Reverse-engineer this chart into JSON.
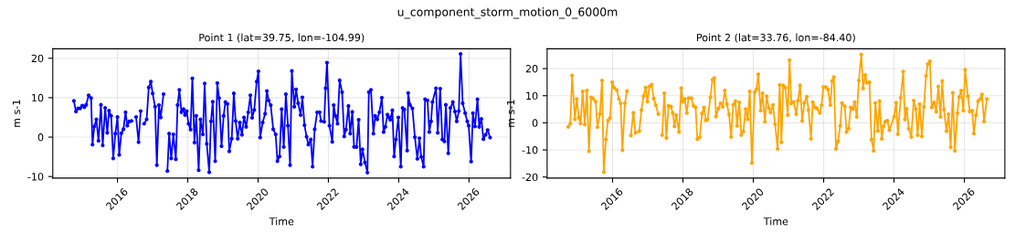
{
  "chart_data": [
    {
      "type": "line",
      "title": "Point 1 (lat=39.75, lon=-104.99)",
      "annotations": [
        "u_component_storm_motion_0_6000m"
      ],
      "xlabel": "Time",
      "ylabel": "m s-1",
      "xlim": [
        2014.16,
        2027.18
      ],
      "xticks": [
        2016,
        2018,
        2020,
        2022,
        2024,
        2026
      ],
      "ylim": [
        -10.4,
        22.4
      ],
      "yticks": [
        -10,
        0,
        10,
        20
      ],
      "grid": true,
      "marker": "circle",
      "line_style": "solid",
      "series": [
        {
          "color": "#0000ff",
          "x": [
            2014.76,
            2014.82,
            2014.88,
            2014.94,
            2015.0,
            2015.06,
            2015.11,
            2015.18,
            2015.25,
            2015.29,
            2015.34,
            2015.4,
            2015.46,
            2015.53,
            2015.58,
            2015.65,
            2015.71,
            2015.76,
            2015.82,
            2015.88,
            2015.94,
            2016.0,
            2016.05,
            2016.11,
            2016.17,
            2016.23,
            2016.28,
            2016.34,
            2016.4,
            2016.47,
            2016.53,
            2016.6,
            2016.66,
            2016.71,
            2016.76,
            2016.83,
            2016.89,
            2016.95,
            2017.0,
            2017.07,
            2017.12,
            2017.18,
            2017.23,
            2017.31,
            2017.37,
            2017.42,
            2017.47,
            2017.53,
            2017.59,
            2017.66,
            2017.71,
            2017.76,
            2017.82,
            2017.88,
            2017.92,
            2017.97,
            2018.02,
            2018.08,
            2018.13,
            2018.19,
            2018.24,
            2018.31,
            2018.36,
            2018.43,
            2018.48,
            2018.54,
            2018.61,
            2018.66,
            2018.71,
            2018.78,
            2018.84,
            2018.89,
            2018.96,
            2019.02,
            2019.07,
            2019.13,
            2019.18,
            2019.25,
            2019.31,
            2019.36,
            2019.42,
            2019.48,
            2019.54,
            2019.6,
            2019.66,
            2019.72,
            2019.78,
            2019.83,
            2019.89,
            2019.96,
            2020.01,
            2020.06,
            2020.13,
            2020.2,
            2020.25,
            2020.3,
            2020.36,
            2020.43,
            2020.5,
            2020.55,
            2020.61,
            2020.67,
            2020.73,
            2020.79,
            2020.85,
            2020.91,
            2020.96,
            2021.03,
            2021.08,
            2021.14,
            2021.21,
            2021.26,
            2021.32,
            2021.38,
            2021.43,
            2021.5,
            2021.55,
            2021.61,
            2021.68,
            2021.75,
            2021.79,
            2021.88,
            2021.92,
            2021.96,
            2022.03,
            2022.11,
            2022.15,
            2022.2,
            2022.26,
            2022.32,
            2022.39,
            2022.45,
            2022.5,
            2022.57,
            2022.62,
            2022.68,
            2022.73,
            2022.8,
            2022.86,
            2022.92,
            2022.97,
            2023.04,
            2023.11,
            2023.15,
            2023.21,
            2023.28,
            2023.33,
            2023.39,
            2023.45,
            2023.52,
            2023.57,
            2023.62,
            2023.68,
            2023.73,
            2023.76,
            2023.82,
            2023.87,
            2023.92,
            2023.99,
            2024.06,
            2024.11,
            2024.16,
            2024.24,
            2024.27,
            2024.32,
            2024.39,
            2024.46,
            2024.53,
            2024.59,
            2024.64,
            2024.71,
            2024.75,
            2024.82,
            2024.87,
            2024.92,
            2024.96,
            2025.06,
            2025.11,
            2025.18,
            2025.24,
            2025.3,
            2025.34,
            2025.41,
            2025.47,
            2025.54,
            2025.6,
            2025.65,
            2025.71,
            2025.76,
            2025.82,
            2025.89,
            2025.95,
            2025.99,
            2026.06,
            2026.11,
            2026.17,
            2026.24,
            2026.29,
            2026.35,
            2026.41,
            2026.47,
            2026.53,
            2026.6
          ],
          "values": [
            9.2,
            6.5,
            7.3,
            7.3,
            8.0,
            7.6,
            8.2,
            10.6,
            9.9,
            -1.9,
            2.7,
            4.5,
            -0.9,
            8.2,
            -2.1,
            7.4,
            1.1,
            6.7,
            5.4,
            -5.4,
            0.9,
            5.1,
            -4.5,
            1.0,
            2.0,
            6.3,
            2.9,
            4.0,
            4.1,
            null,
            5.1,
            -1.3,
            6.6,
            null,
            3.4,
            4.5,
            12.6,
            14.1,
            11.1,
            7.7,
            -7.1,
            8.1,
            5.0,
            10.9,
            null,
            -8.6,
            0.9,
            -5.4,
            0.7,
            -5.6,
            8.1,
            12.0,
            6.3,
            7.1,
            5.6,
            6.6,
            3.4,
            1.9,
            14.9,
            -1.4,
            5.4,
            -8.4,
            4.5,
            0.7,
            13.6,
            -1.7,
            -8.9,
            4.0,
            9.0,
            -6.1,
            13.7,
            9.9,
            -2.3,
            5.4,
            8.9,
            8.4,
            -3.6,
            -0.4,
            11.1,
            4.1,
            -0.4,
            3.7,
            0.6,
            5.0,
            2.6,
            6.3,
            10.6,
            4.9,
            6.9,
            14.1,
            16.7,
            -0.1,
            3.7,
            5.9,
            11.7,
            9.3,
            8.1,
            2.0,
            0.7,
            -6.1,
            -4.9,
            7.1,
            -2.5,
            10.9,
            2.9,
            -7.1,
            16.8,
            7.7,
            12.1,
            8.6,
            5.6,
            10.1,
            3.0,
            0.1,
            -1.9,
            -0.6,
            -7.5,
            2.0,
            6.3,
            6.3,
            4.1,
            3.9,
            12.4,
            18.9,
            2.9,
            -1.2,
            8.1,
            5.4,
            3.4,
            14.4,
            11.4,
            0.2,
            1.9,
            7.9,
            0.9,
            6.4,
            -2.5,
            -2.5,
            4.4,
            -6.9,
            -3.1,
            -6.4,
            -9.0,
            11.4,
            12.0,
            0.9,
            5.4,
            4.5,
            6.3,
            10.0,
            1.3,
            2.6,
            5.7,
            5.0,
            4.4,
            6.8,
            -4.9,
            -0.6,
            5.0,
            -7.5,
            7.4,
            7.0,
            -3.4,
            11.2,
            8.2,
            7.3,
            0.0,
            -5.5,
            -0.3,
            -5.0,
            -7.5,
            9.6,
            9.3,
            1.3,
            4.0,
            8.9,
            12.4,
            1.1,
            12.3,
            -0.6,
            -1.1,
            8.2,
            -4.1,
            7.4,
            8.9,
            6.5,
            4.0,
            6.6,
            21.1,
            8.6,
            6.1,
            4.0,
            2.9,
            -6.2,
            6.1,
            2.7,
            9.6,
            2.6,
            4.6,
            -0.5,
            0.6,
            1.8,
            -0.1
          ]
        }
      ]
    },
    {
      "type": "line",
      "title": "Point 2 (lat=33.76, lon=-84.40)",
      "xlabel": "Time",
      "ylabel": "m s-1",
      "xlim": [
        2014.14,
        2027.15
      ],
      "xticks": [
        2016,
        2018,
        2020,
        2022,
        2024,
        2026
      ],
      "ylim": [
        -20.4,
        27.3
      ],
      "yticks": [
        -20,
        -10,
        0,
        10,
        20
      ],
      "grid": true,
      "marker": "circle",
      "line_style": "solid",
      "series": [
        {
          "color": "#ffa500",
          "x": [
            2014.74,
            2014.8,
            2014.85,
            2014.93,
            2014.98,
            2015.04,
            2015.09,
            2015.15,
            2015.21,
            2015.27,
            2015.33,
            2015.39,
            2015.44,
            2015.52,
            2015.57,
            2015.64,
            2015.7,
            2015.75,
            2015.81,
            2015.87,
            2015.93,
            2015.99,
            2016.04,
            2016.12,
            2016.18,
            2016.23,
            2016.28,
            2016.35,
            2016.41,
            2016.47,
            2016.52,
            2016.59,
            2016.65,
            2016.76,
            2016.82,
            2016.88,
            2016.94,
            2016.99,
            2017.05,
            2017.11,
            2017.17,
            2017.23,
            2017.3,
            2017.35,
            2017.41,
            2017.47,
            2017.53,
            2017.59,
            2017.66,
            2017.71,
            2017.76,
            2017.81,
            2017.89,
            2017.95,
            2018.0,
            2018.05,
            2018.11,
            2018.16,
            2018.24,
            2018.3,
            2018.36,
            2018.41,
            2018.48,
            2018.54,
            2018.6,
            2018.65,
            2018.7,
            2018.78,
            2018.84,
            2018.89,
            2018.94,
            2019.01,
            2019.07,
            2019.13,
            2019.19,
            2019.25,
            2019.31,
            2019.37,
            2019.43,
            2019.49,
            2019.54,
            2019.6,
            2019.66,
            2019.72,
            2019.78,
            2019.84,
            2019.9,
            2019.96,
            2020.04,
            2020.09,
            2020.14,
            2020.21,
            2020.26,
            2020.33,
            2020.38,
            2020.44,
            2020.49,
            2020.56,
            2020.62,
            2020.69,
            2020.75,
            2020.8,
            2020.85,
            2020.91,
            2020.98,
            2021.03,
            2021.08,
            2021.15,
            2021.22,
            2021.27,
            2021.33,
            2021.39,
            2021.45,
            2021.52,
            2021.57,
            2021.64,
            2021.69,
            2021.76,
            2021.81,
            2021.89,
            2021.94,
            2021.99,
            2022.06,
            2022.12,
            2022.19,
            2022.24,
            2022.29,
            2022.35,
            2022.41,
            2022.47,
            2022.52,
            2022.6,
            2022.65,
            2022.71,
            2022.77,
            2022.83,
            2022.88,
            2022.94,
            2023.0,
            2023.07,
            2023.12,
            2023.18,
            2023.23,
            2023.3,
            2023.36,
            2023.42,
            2023.47,
            2023.54,
            2023.59,
            2023.65,
            2023.7,
            2023.75,
            2023.81,
            2023.87,
            2024.0,
            2024.06,
            2024.11,
            2024.19,
            2024.26,
            2024.31,
            2024.36,
            2024.42,
            2024.49,
            2024.56,
            2024.62,
            2024.67,
            2024.73,
            2024.79,
            2024.85,
            2024.91,
            2024.96,
            2025.02,
            2025.07,
            2025.14,
            2025.2,
            2025.26,
            2025.32,
            2025.37,
            2025.42,
            2025.49,
            2025.55,
            2025.61,
            2025.67,
            2025.73,
            2025.8,
            2025.85,
            2025.91,
            2025.97,
            2026.02,
            2026.1,
            2026.15,
            2026.22,
            2026.27,
            2026.33,
            2026.39,
            2026.45,
            2026.5,
            2026.56,
            2026.64
          ],
          "values": [
            -1.5,
            -0.3,
            17.5,
            1.3,
            8.8,
            2.0,
            -0.3,
            11.6,
            -0.6,
            11.9,
            -10.5,
            9.4,
            9.0,
            7.8,
            -1.6,
            3.2,
            15.6,
            -18.2,
            -6.1,
            0.9,
            1.8,
            15.0,
            13.0,
            12.1,
            8.8,
            7.2,
            -10.1,
            7.2,
            11.7,
            null,
            -4.7,
            3.7,
            -3.7,
            -3.1,
            4.7,
            9.8,
            13.0,
            7.8,
            13.4,
            14.1,
            9.0,
            6.5,
            3.2,
            null,
            -4.5,
            10.9,
            -5.6,
            6.3,
            6.0,
            3.6,
            -1.3,
            2.8,
            -3.4,
            12.8,
            7.8,
            8.8,
            3.6,
            9.1,
            9.1,
            6.3,
            5.7,
            -6.0,
            -5.3,
            3.4,
            5.7,
            0.9,
            1.2,
            9.4,
            15.9,
            16.5,
            2.3,
            5.3,
            7.2,
            5.9,
            11.9,
            6.9,
            3.1,
            -5.2,
            6.7,
            8.0,
            -1.1,
            7.5,
            -4.5,
            -3.2,
            5.1,
            1.3,
            11.6,
            -14.8,
            11.3,
            12.4,
            17.9,
            4.5,
            10.9,
            0.4,
            9.8,
            5.5,
            3.8,
            6.6,
            -0.5,
            -9.6,
            14.0,
            -7.2,
            13.8,
            13.0,
            2.8,
            23.1,
            7.2,
            7.7,
            3.2,
            8.2,
            13.8,
            0.7,
            7.4,
            9.6,
            4.7,
            -5.9,
            7.6,
            5.7,
            5.3,
            3.7,
            6.5,
            13.2,
            13.2,
            12.3,
            6.5,
            15.4,
            16.9,
            -9.6,
            -6.8,
            -1.1,
            7.3,
            6.1,
            -3.4,
            -2.1,
            5.7,
            5.1,
            7.6,
            2.2,
            15.6,
            25.2,
            12.7,
            17.6,
            14.8,
            15.0,
            -6.2,
            -10.3,
            7.3,
            -3.0,
            8.0,
            -5.9,
            -1.3,
            0.4,
            0.8,
            -2.7,
            2.2,
            7.4,
            -4.2,
            9.2,
            18.9,
            1.2,
            5.2,
            -2.2,
            -5.2,
            8.2,
            5.1,
            -4.5,
            6.9,
            -5.0,
            5.9,
            17.3,
            21.7,
            22.7,
            5.7,
            7.5,
            4.1,
            13.4,
            2.2,
            15.4,
            4.9,
            -3.1,
            3.2,
            -9.0,
            11.1,
            -10.3,
            3.6,
            9.4,
            11.9,
            4.5,
            19.6,
            9.8,
            4.2,
            4.5,
            -4.0,
            2.8,
            8.0,
            8.8,
            10.5,
            0.5,
            8.8
          ]
        }
      ]
    }
  ]
}
